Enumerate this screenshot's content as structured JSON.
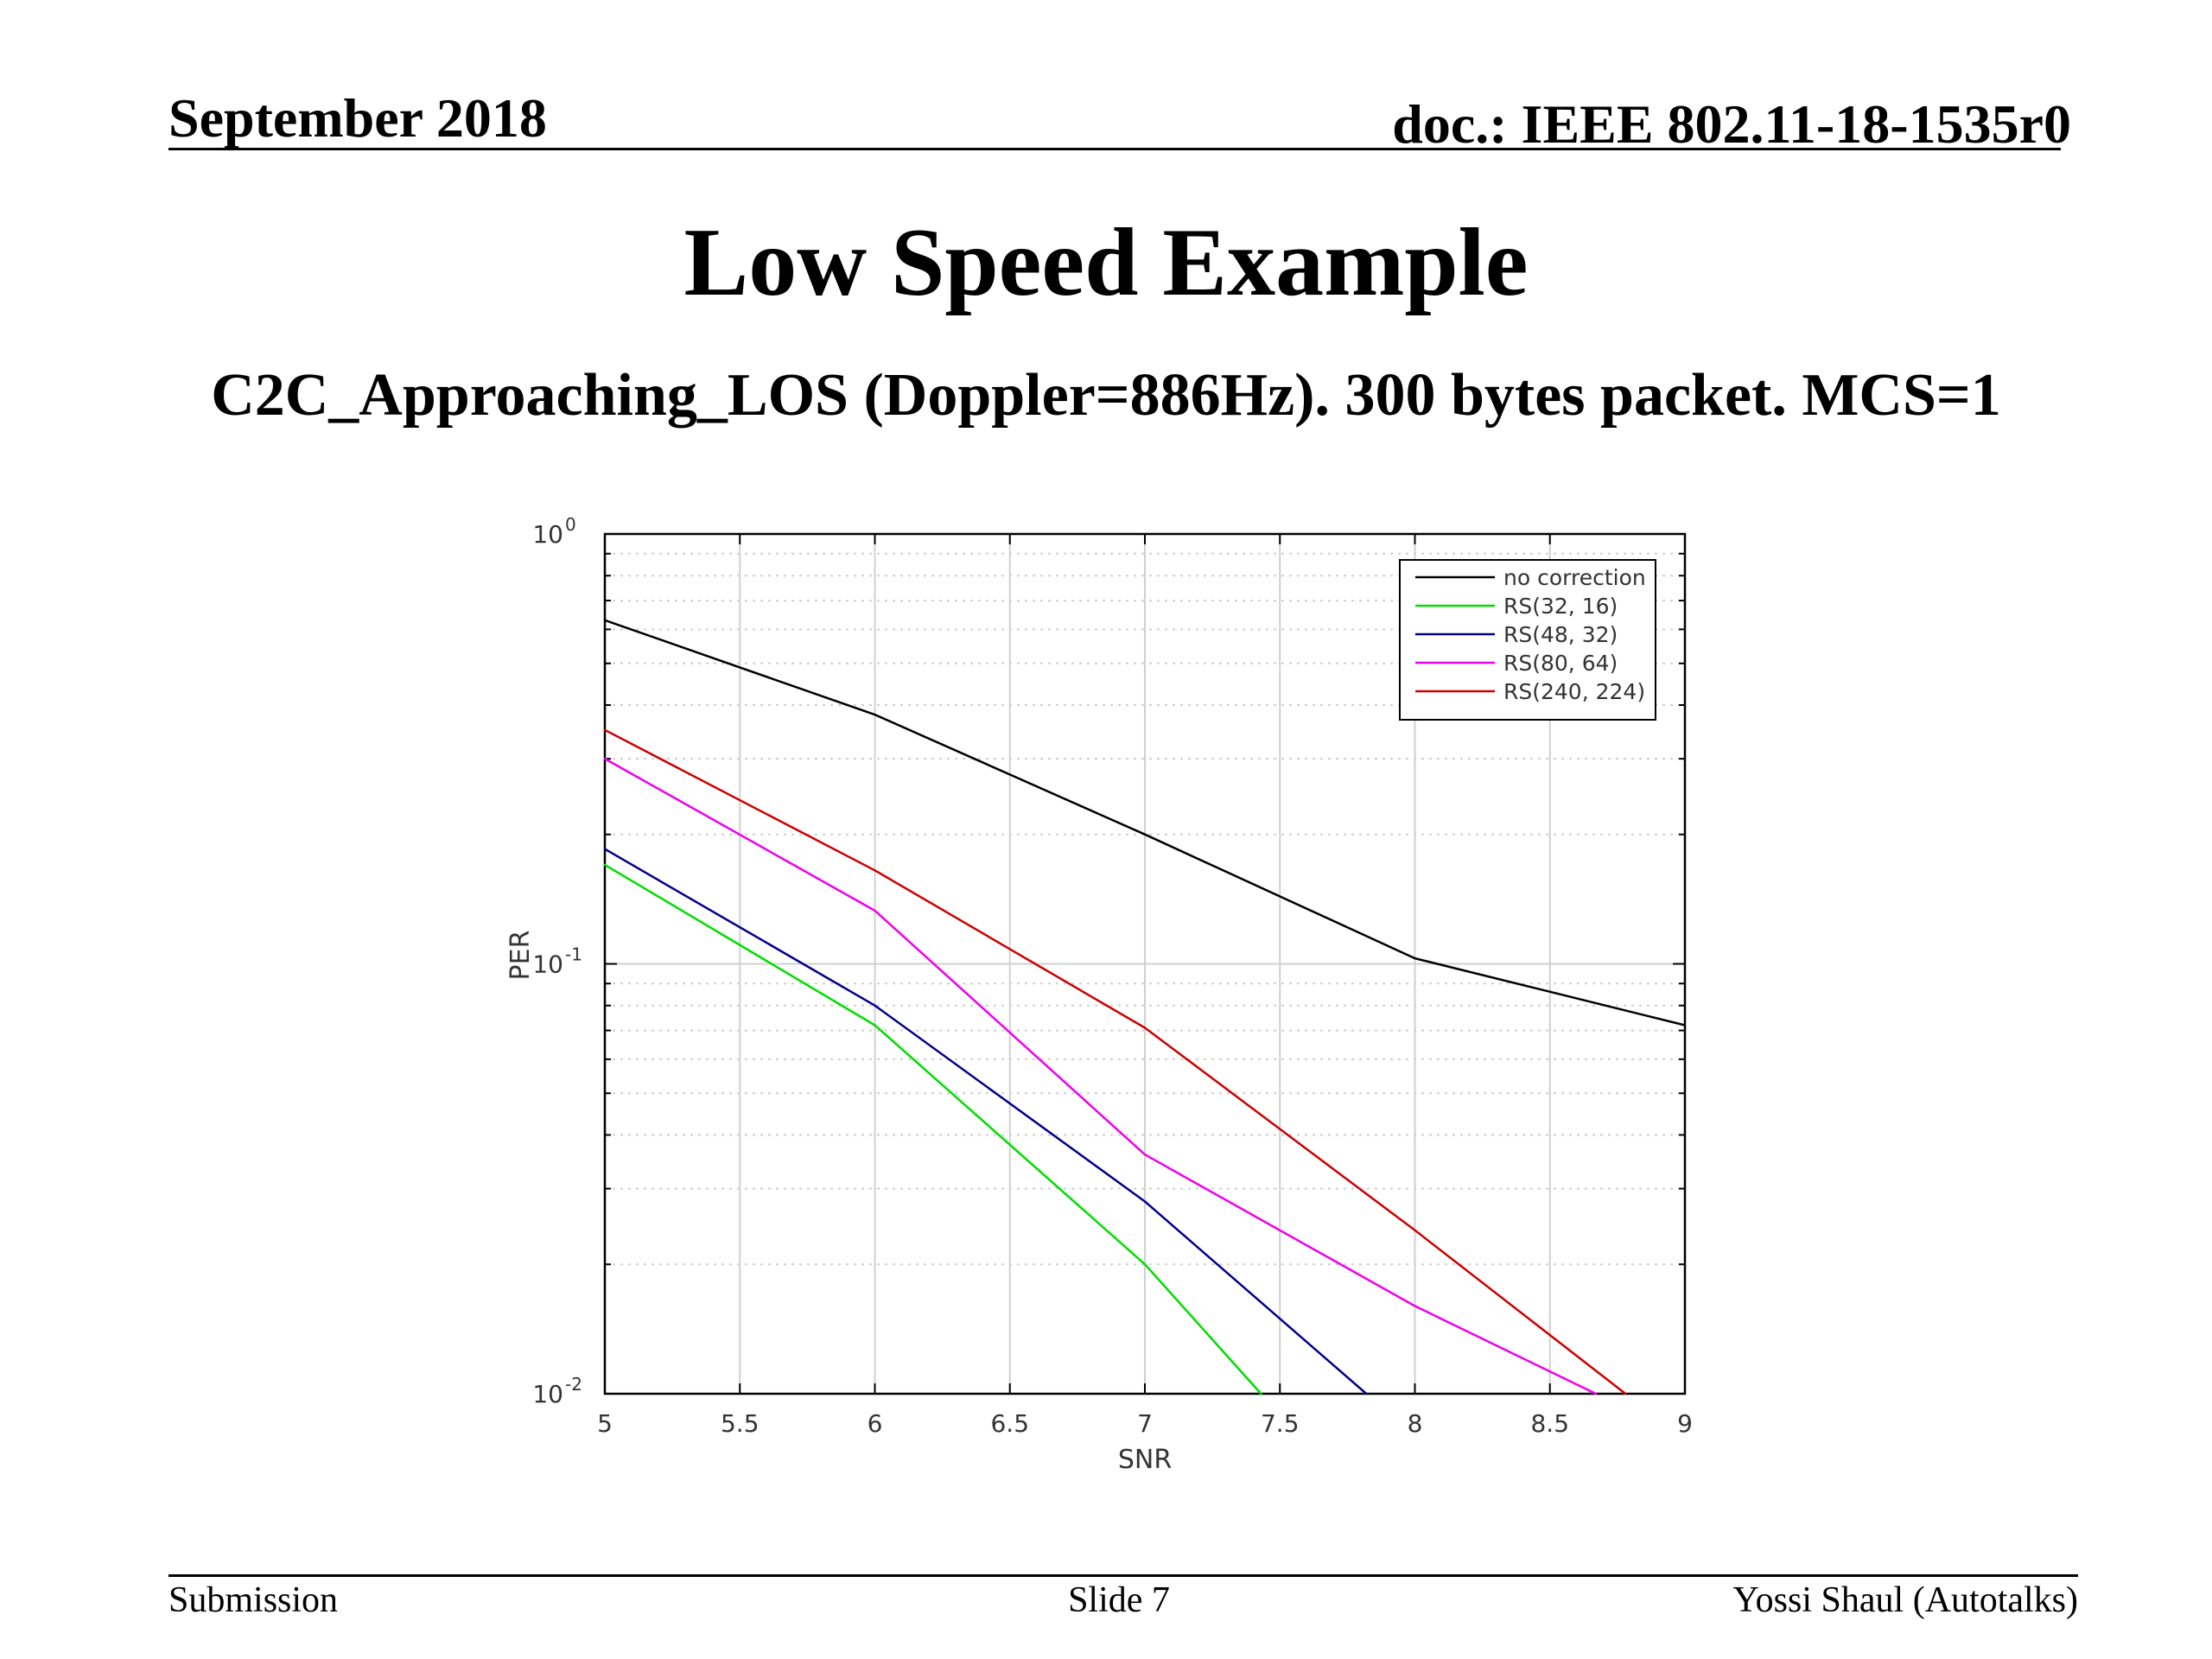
{
  "header": {
    "date": "September 2018",
    "doc": "doc.: IEEE 802.11-18-1535r0"
  },
  "slide": {
    "title": "Low Speed Example",
    "subtitle": "C2C_Approaching_LOS (Doppler=886Hz). 300 bytes packet. MCS=1"
  },
  "footer": {
    "left": "Submission",
    "center": "Slide 7",
    "right": "Yossi Shaul (Autotalks)"
  },
  "chart_data": {
    "type": "line",
    "title": "",
    "xlabel": "SNR",
    "ylabel": "PER",
    "xlim": [
      5,
      9
    ],
    "ylim": [
      0.01,
      1
    ],
    "yscale": "log",
    "grid": true,
    "legend_position": "top-right",
    "x_ticks": [
      "5",
      "5.5",
      "6",
      "6.5",
      "7",
      "7.5",
      "8",
      "8.5",
      "9"
    ],
    "y_ticks": [
      {
        "value": 1,
        "base": "10",
        "exp": "0"
      },
      {
        "value": 0.1,
        "base": "10",
        "exp": "-1"
      },
      {
        "value": 0.01,
        "base": "10",
        "exp": "-2"
      }
    ],
    "series": [
      {
        "name": "no correction",
        "color": "#000000",
        "x": [
          5,
          6,
          7,
          8,
          9
        ],
        "y": [
          0.63,
          0.38,
          0.2,
          0.103,
          0.072
        ]
      },
      {
        "name": "RS(32, 16)",
        "color": "#00dd00",
        "x": [
          5,
          6,
          7,
          7.43
        ],
        "y": [
          0.17,
          0.072,
          0.02,
          0.01
        ]
      },
      {
        "name": "RS(48, 32)",
        "color": "#00008b",
        "x": [
          5,
          6,
          7,
          7.82
        ],
        "y": [
          0.185,
          0.08,
          0.028,
          0.01
        ]
      },
      {
        "name": "RS(80, 64)",
        "color": "#ee00ee",
        "x": [
          5,
          6,
          7,
          8,
          8.67
        ],
        "y": [
          0.3,
          0.133,
          0.036,
          0.016,
          0.01
        ]
      },
      {
        "name": "RS(240, 224)",
        "color": "#cc0000",
        "x": [
          5,
          6,
          7,
          8,
          8.78
        ],
        "y": [
          0.35,
          0.165,
          0.071,
          0.024,
          0.01
        ]
      }
    ]
  }
}
